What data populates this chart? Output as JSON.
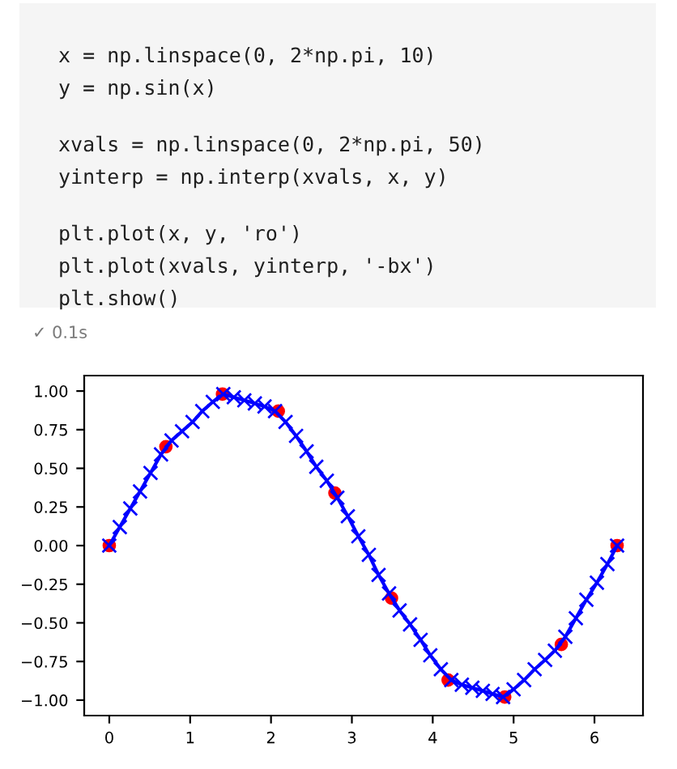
{
  "chart_data": {
    "type": "line",
    "annotations": [
      "x = np.linspace(0, 2*np.pi, 10)",
      "y = np.sin(x)",
      "xvals = np.linspace(0, 2*np.pi, 50)",
      "yinterp = np.interp(xvals, x, y)",
      "plt.plot(x, y, 'ro')",
      "plt.plot(xvals, yinterp, '-bx')",
      "plt.show()",
      "✓ 0.1s"
    ],
    "series": [
      {
        "type": "scatter",
        "color": "#ff0000",
        "marker": "circle",
        "x": [
          0,
          0.7,
          1.4,
          2.09,
          2.79,
          3.49,
          4.19,
          4.89,
          5.59,
          6.28
        ],
        "values": [
          0,
          0.64,
          0.98,
          0.87,
          0.34,
          -0.34,
          -0.87,
          -0.98,
          -0.64,
          0
        ]
      },
      {
        "color": "#0000ff",
        "marker": "cross",
        "line_style": "solid",
        "x": [
          0,
          0.13,
          0.26,
          0.38,
          0.51,
          0.64,
          0.77,
          0.9,
          1.03,
          1.15,
          1.28,
          1.41,
          1.54,
          1.67,
          1.8,
          1.92,
          2.05,
          2.18,
          2.31,
          2.44,
          2.56,
          2.69,
          2.82,
          2.95,
          3.08,
          3.21,
          3.33,
          3.46,
          3.59,
          3.72,
          3.85,
          3.97,
          4.1,
          4.23,
          4.36,
          4.49,
          4.62,
          4.74,
          4.87,
          5.0,
          5.13,
          5.26,
          5.39,
          5.51,
          5.64,
          5.77,
          5.9,
          6.03,
          6.16,
          6.28
        ],
        "values": [
          0,
          0.12,
          0.24,
          0.35,
          0.47,
          0.59,
          0.68,
          0.74,
          0.8,
          0.87,
          0.93,
          0.98,
          0.96,
          0.94,
          0.92,
          0.9,
          0.87,
          0.8,
          0.71,
          0.61,
          0.51,
          0.42,
          0.31,
          0.19,
          0.06,
          -0.06,
          -0.19,
          -0.31,
          -0.42,
          -0.51,
          -0.61,
          -0.71,
          -0.8,
          -0.87,
          -0.9,
          -0.92,
          -0.94,
          -0.96,
          -0.98,
          -0.93,
          -0.87,
          -0.8,
          -0.74,
          -0.68,
          -0.59,
          -0.47,
          -0.35,
          -0.24,
          -0.12,
          0
        ]
      }
    ],
    "xlim": [
      -0.31,
      6.6
    ],
    "ylim": [
      -1.1,
      1.1
    ],
    "xticks": [
      0,
      1,
      2,
      3,
      4,
      5,
      6
    ],
    "yticks": [
      {
        "value": -1,
        "label": "−1.00"
      },
      {
        "value": -0.75,
        "label": "−0.75"
      },
      {
        "value": -0.5,
        "label": "−0.50"
      },
      {
        "value": -0.25,
        "label": "−0.25"
      },
      {
        "value": 0,
        "label": "0.00"
      },
      {
        "value": 0.25,
        "label": "0.25"
      },
      {
        "value": 0.5,
        "label": "0.50"
      },
      {
        "value": 0.75,
        "label": "0.75"
      },
      {
        "value": 1,
        "label": "1.00"
      }
    ],
    "grid": false,
    "legend": false
  }
}
